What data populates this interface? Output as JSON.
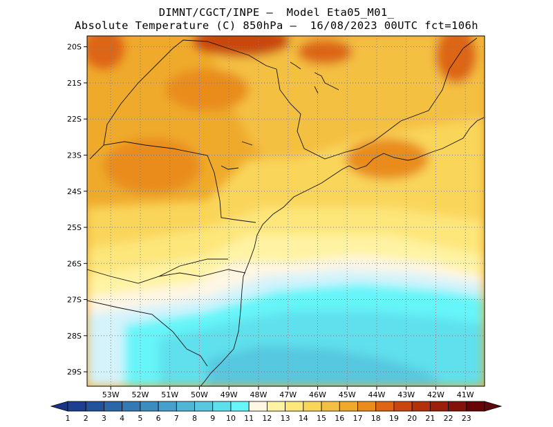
{
  "header": {
    "line1": "DIMNT/CGCT/INPE –  Model Eta05_M01_",
    "line2": "Absolute Temperature (C) 850hPa –  16/08/2023 00UTC fct=106h"
  },
  "map": {
    "lat_labels": [
      "20S",
      "21S",
      "22S",
      "23S",
      "24S",
      "25S",
      "26S",
      "27S",
      "28S",
      "29S"
    ],
    "lon_labels": [
      "53W",
      "52W",
      "51W",
      "50W",
      "49W",
      "48W",
      "47W",
      "46W",
      "45W",
      "44W",
      "43W",
      "42W",
      "41W"
    ],
    "extent": {
      "lon_min": -53.8,
      "lon_max": -40.35,
      "lat_max": -19.7,
      "lat_min": -29.4
    }
  },
  "colorbar": {
    "labels": [
      "1",
      "2",
      "3",
      "4",
      "5",
      "6",
      "7",
      "8",
      "9",
      "10",
      "11",
      "12",
      "13",
      "14",
      "15",
      "16",
      "17",
      "18",
      "19",
      "20",
      "21",
      "22",
      "23"
    ],
    "colors": [
      "#1d3f8f",
      "#23529c",
      "#2b66a8",
      "#3379b3",
      "#3c8dbf",
      "#45a1cb",
      "#4fb6d6",
      "#57c8e0",
      "#5ee0ec",
      "#66f5f9",
      "#fff6e4",
      "#fff3a3",
      "#fde67a",
      "#f9d55a",
      "#f4c043",
      "#efaa2c",
      "#e98c1b",
      "#dd6513",
      "#c9470f",
      "#b3300c",
      "#9c1f0a",
      "#851208",
      "#690406"
    ],
    "under_color": "#1a3588",
    "over_color": "#5c0a10"
  }
}
